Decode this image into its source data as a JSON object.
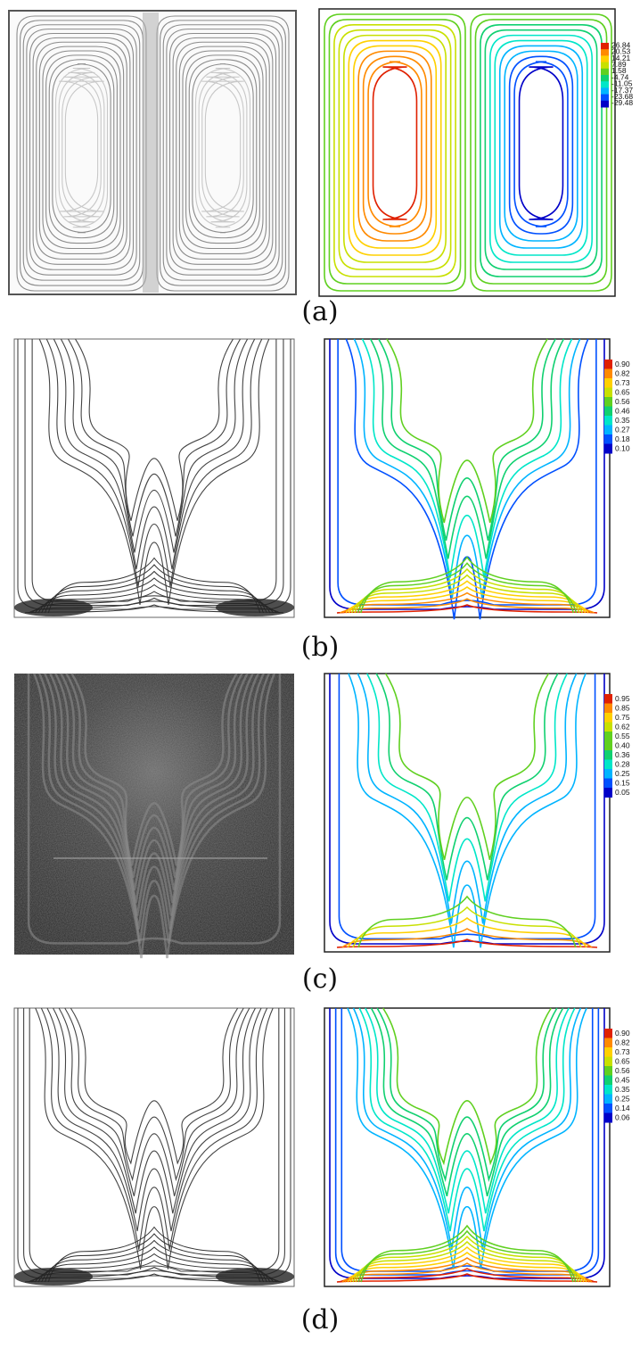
{
  "panels": [
    {
      "caption": "(a)",
      "colorbar": [
        "26.84",
        "20.53",
        "14.21",
        "7.89",
        "1.58",
        "-4.74",
        "-11.05",
        "-17.37",
        "-23.68",
        "-29.48"
      ]
    },
    {
      "caption": "(b)",
      "colorbar": [
        "0.90",
        "0.82",
        "0.73",
        "0.65",
        "0.56",
        "0.46",
        "0.35",
        "0.27",
        "0.18",
        "0.10"
      ]
    },
    {
      "caption": "(c)",
      "colorbar": [
        "0.95",
        "0.85",
        "0.75",
        "0.62",
        "0.55",
        "0.40",
        "0.36",
        "0.28",
        "0.25",
        "0.15",
        "0.05"
      ]
    },
    {
      "caption": "(d)",
      "colorbar": [
        "0.90",
        "0.82",
        "0.73",
        "0.65",
        "0.56",
        "0.45",
        "0.35",
        "0.25",
        "0.14",
        "0.06"
      ]
    }
  ],
  "colors": {
    "jet": [
      "#0000c8",
      "#0050ff",
      "#00b4ff",
      "#00e6c8",
      "#10d070",
      "#60d020",
      "#c8e000",
      "#ffd000",
      "#ff8a00",
      "#e02000"
    ],
    "experimental_line": "#444444",
    "frame": "#222222"
  }
}
